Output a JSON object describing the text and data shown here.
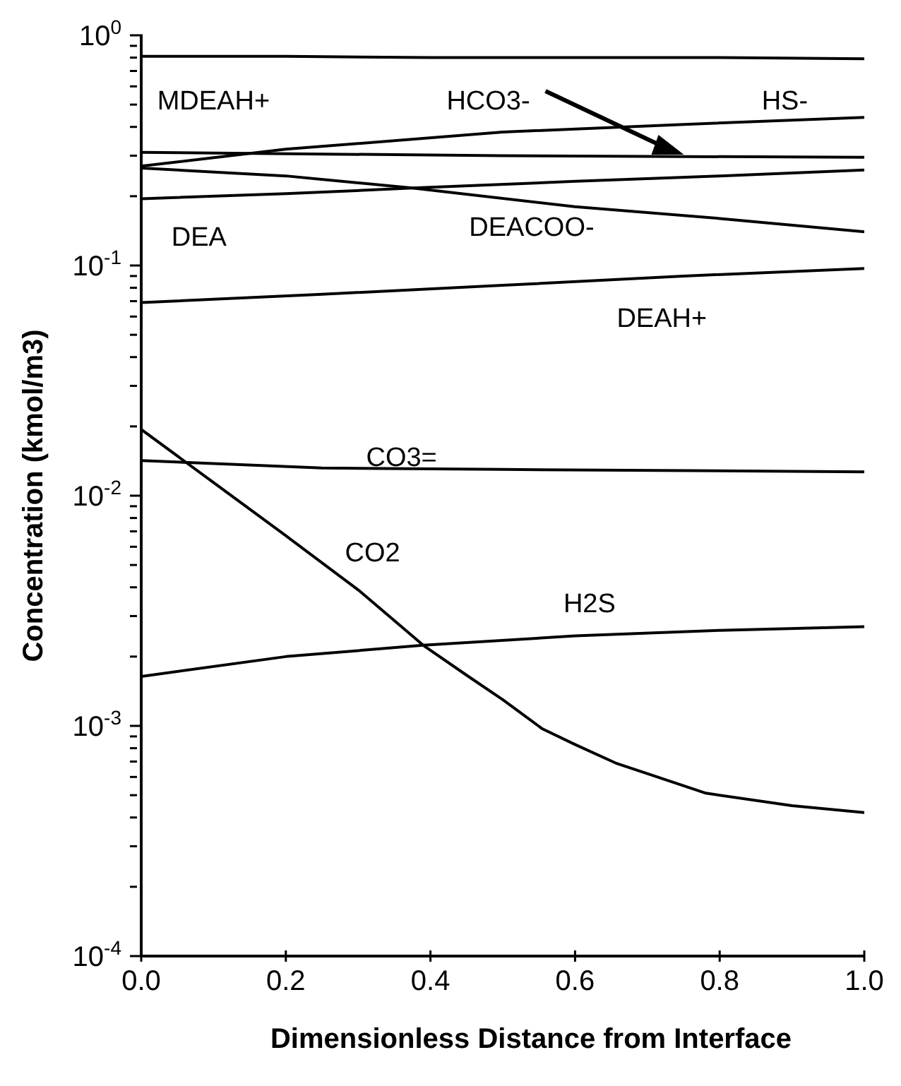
{
  "chart_data": {
    "type": "line",
    "xlabel": "Dimensionless Distance from Interface",
    "ylabel": "Concentration  (kmol/m3)",
    "log": "y",
    "marker": "none",
    "line_style": "solid",
    "xlim": [
      0,
      1
    ],
    "xticks": [
      {
        "value": 0,
        "label": "0.0"
      },
      {
        "value": 0.2,
        "label": "0.2"
      },
      {
        "value": 0.4,
        "label": "0.4"
      },
      {
        "value": 0.6,
        "label": "0.6"
      },
      {
        "value": 0.8,
        "label": "0.8"
      },
      {
        "value": 1,
        "label": "1.0"
      }
    ],
    "ylim": [
      0.0001,
      1
    ],
    "yticks": [
      {
        "value": 0.0001,
        "label": "10$^{-4}$"
      },
      {
        "value": 0.0002,
        "label": null
      },
      {
        "value": 0.0003,
        "label": null
      },
      {
        "value": 0.0004,
        "label": null
      },
      {
        "value": 0.0005,
        "label": null
      },
      {
        "value": 0.0006,
        "label": null
      },
      {
        "value": 0.0007,
        "label": null
      },
      {
        "value": 0.0008,
        "label": null
      },
      {
        "value": 0.0009,
        "label": null
      },
      {
        "value": 0.001,
        "label": "10$^{-3}$"
      },
      {
        "value": 0.002,
        "label": null
      },
      {
        "value": 0.003,
        "label": null
      },
      {
        "value": 0.004,
        "label": null
      },
      {
        "value": 0.005,
        "label": null
      },
      {
        "value": 0.006,
        "label": null
      },
      {
        "value": 0.007,
        "label": null
      },
      {
        "value": 0.008,
        "label": null
      },
      {
        "value": 0.009,
        "label": null
      },
      {
        "value": 0.01,
        "label": "10$^{-2}$"
      },
      {
        "value": 0.02,
        "label": null
      },
      {
        "value": 0.03,
        "label": null
      },
      {
        "value": 0.04,
        "label": null
      },
      {
        "value": 0.05,
        "label": null
      },
      {
        "value": 0.06,
        "label": null
      },
      {
        "value": 0.07,
        "label": null
      },
      {
        "value": 0.08,
        "label": null
      },
      {
        "value": 0.09,
        "label": null
      },
      {
        "value": 0.1,
        "label": "10$^{-1}$"
      },
      {
        "value": 0.2,
        "label": null
      },
      {
        "value": 0.3,
        "label": null
      },
      {
        "value": 0.4,
        "label": null
      },
      {
        "value": 0.5,
        "label": null
      },
      {
        "value": 0.6,
        "label": null
      },
      {
        "value": 0.7,
        "label": null
      },
      {
        "value": 0.8,
        "label": null
      },
      {
        "value": 0.9,
        "label": null
      },
      {
        "value": 1,
        "label": "10$^{0}$"
      }
    ],
    "series": [
      {
        "name": "MDEAH+",
        "color": "#000000",
        "x": [
          0,
          0.2,
          0.4,
          0.6,
          0.8,
          1
        ],
        "values": [
          0.81,
          0.81,
          0.8,
          0.8,
          0.8,
          0.79
        ]
      },
      {
        "name": "HS-",
        "color": "#000000",
        "x": [
          0,
          0.2,
          0.5,
          0.75,
          1
        ],
        "values": [
          0.27,
          0.32,
          0.38,
          0.41,
          0.44
        ]
      },
      {
        "name": "HCO3-",
        "color": "#000000",
        "x": [
          0,
          0.5,
          1
        ],
        "values": [
          0.31,
          0.3,
          0.295
        ]
      },
      {
        "name": "DEA",
        "color": "#000000",
        "x": [
          0,
          0.2,
          0.375,
          0.6,
          0.8,
          1
        ],
        "values": [
          0.195,
          0.205,
          0.217,
          0.232,
          0.245,
          0.26
        ]
      },
      {
        "name": "DEACOO-",
        "color": "#000000",
        "x": [
          0,
          0.2,
          0.375,
          0.6,
          0.8,
          1
        ],
        "values": [
          0.265,
          0.245,
          0.217,
          0.18,
          0.16,
          0.14
        ]
      },
      {
        "name": "DEAH+",
        "color": "#000000",
        "x": [
          0,
          0.25,
          0.5,
          0.75,
          1
        ],
        "values": [
          0.069,
          0.075,
          0.082,
          0.09,
          0.097
        ]
      },
      {
        "name": "CO3=",
        "color": "#000000",
        "x": [
          0,
          0.25,
          0.5,
          1
        ],
        "values": [
          0.0142,
          0.0132,
          0.013,
          0.0127
        ]
      },
      {
        "name": "CO2",
        "color": "#000000",
        "x": [
          0,
          0.1,
          0.2,
          0.3,
          0.39,
          0.45,
          0.5,
          0.555,
          0.6,
          0.656,
          0.7,
          0.781,
          0.9,
          1
        ],
        "values": [
          0.0194,
          0.0114,
          0.0067,
          0.0039,
          0.00224,
          0.00166,
          0.0013,
          0.00097,
          0.00083,
          0.00069,
          0.00062,
          0.00051,
          0.00045,
          0.00042
        ]
      },
      {
        "name": "H2S",
        "color": "#000000",
        "x": [
          0,
          0.2,
          0.39,
          0.6,
          0.8,
          1
        ],
        "values": [
          0.00164,
          0.002,
          0.00224,
          0.00246,
          0.0026,
          0.0027
        ]
      }
    ]
  }
}
